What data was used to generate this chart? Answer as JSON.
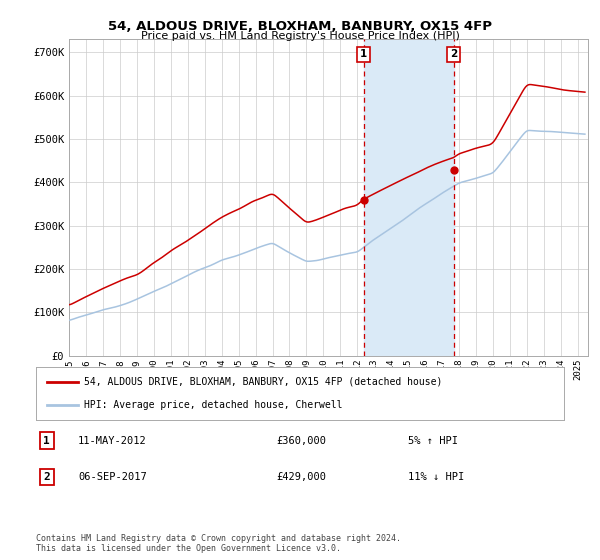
{
  "title": "54, ALDOUS DRIVE, BLOXHAM, BANBURY, OX15 4FP",
  "subtitle": "Price paid vs. HM Land Registry's House Price Index (HPI)",
  "ylim": [
    0,
    730000
  ],
  "yticks": [
    0,
    100000,
    200000,
    300000,
    400000,
    500000,
    600000,
    700000
  ],
  "ytick_labels": [
    "£0",
    "£100K",
    "£200K",
    "£300K",
    "£400K",
    "£500K",
    "£600K",
    "£700K"
  ],
  "hpi_color": "#a8c4e0",
  "price_color": "#cc0000",
  "marker1_price": 360000,
  "marker2_price": 429000,
  "marker1_year": 2012.37,
  "marker2_year": 2017.67,
  "legend_label1": "54, ALDOUS DRIVE, BLOXHAM, BANBURY, OX15 4FP (detached house)",
  "legend_label2": "HPI: Average price, detached house, Cherwell",
  "annotation1": [
    "1",
    "11-MAY-2012",
    "£360,000",
    "5% ↑ HPI"
  ],
  "annotation2": [
    "2",
    "06-SEP-2017",
    "£429,000",
    "11% ↓ HPI"
  ],
  "footer": "Contains HM Land Registry data © Crown copyright and database right 2024.\nThis data is licensed under the Open Government Licence v3.0.",
  "background_color": "#ffffff",
  "grid_color": "#cccccc",
  "span_color": "#daeaf7"
}
